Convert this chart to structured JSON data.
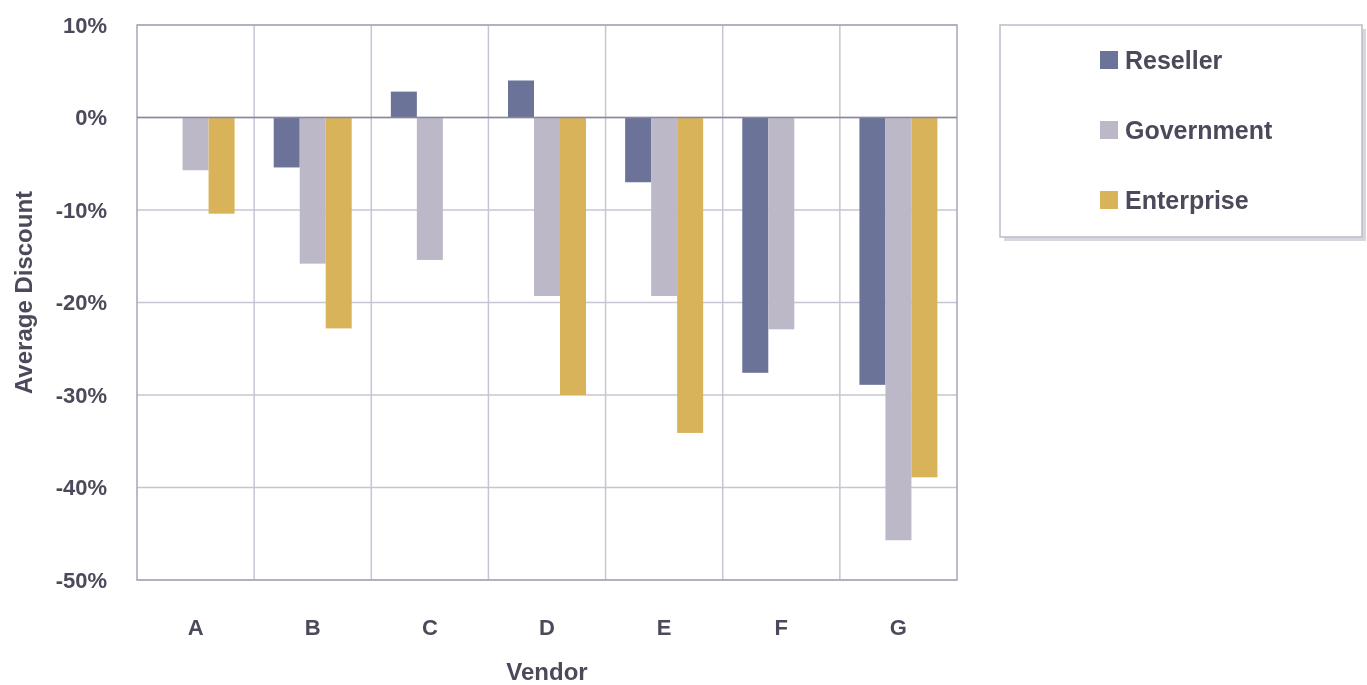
{
  "chart_data": {
    "type": "bar",
    "xlabel": "Vendor",
    "ylabel": "Average Discount",
    "categories": [
      "A",
      "B",
      "C",
      "D",
      "E",
      "F",
      "G"
    ],
    "series": [
      {
        "name": "Reseller",
        "color": "#6b7398",
        "values": [
          null,
          -5.4,
          2.8,
          4.0,
          -7.0,
          -27.6,
          -28.9
        ]
      },
      {
        "name": "Government",
        "color": "#bcb8c8",
        "values": [
          -5.7,
          -15.8,
          -15.4,
          -19.3,
          -19.3,
          -22.9,
          -45.7
        ]
      },
      {
        "name": "Enterprise",
        "color": "#d9b35a",
        "values": [
          -10.4,
          -22.8,
          null,
          -30.0,
          -34.1,
          null,
          -38.9
        ]
      }
    ],
    "ylim": [
      -50,
      10
    ],
    "yticks": [
      {
        "value": -50,
        "label": "-50%"
      },
      {
        "value": -40,
        "label": "-40%"
      },
      {
        "value": -30,
        "label": "-30%"
      },
      {
        "value": -20,
        "label": "-20%"
      },
      {
        "value": -10,
        "label": "-10%"
      },
      {
        "value": 0,
        "label": "0%"
      },
      {
        "value": 10,
        "label": "10%"
      }
    ],
    "grid": true,
    "legend": "top right"
  }
}
